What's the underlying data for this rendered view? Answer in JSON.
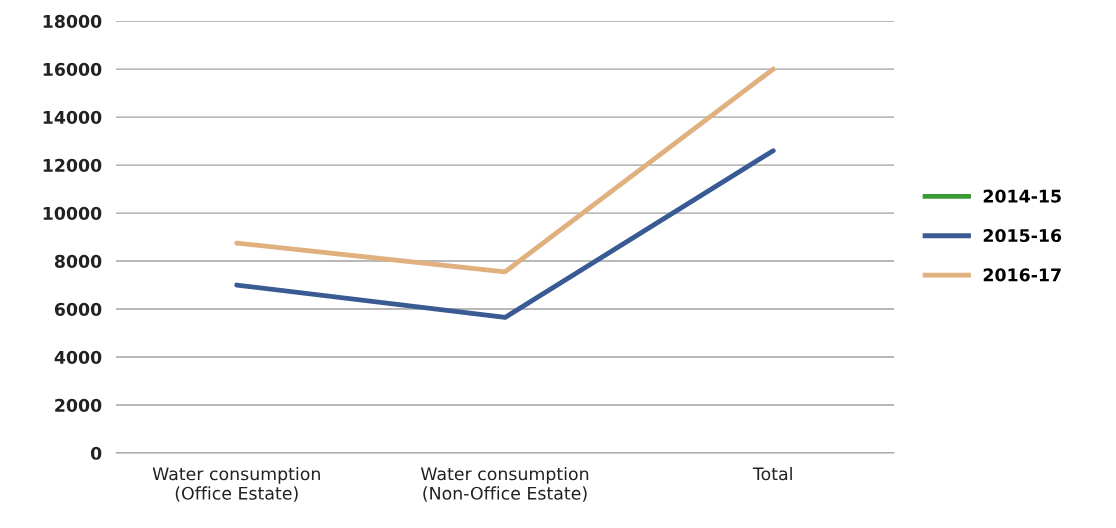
{
  "chart_data": {
    "type": "line",
    "categories": [
      "Water consumption\n(Office Estate)",
      "Water consumption\n(Non-Office Estate)",
      "Total"
    ],
    "series": [
      {
        "name": "2014-15",
        "color": "#3a9a35",
        "values": [
          null,
          null,
          null
        ]
      },
      {
        "name": "2015-16",
        "color": "#3a5a93",
        "values": [
          7000,
          5650,
          12600
        ]
      },
      {
        "name": "2016-17",
        "color": "#e0b07e",
        "values": [
          8750,
          7550,
          16000
        ]
      }
    ],
    "ylim": [
      0,
      18000
    ],
    "yticks": [
      0,
      2000,
      4000,
      6000,
      8000,
      10000,
      12000,
      14000,
      16000,
      18000
    ],
    "grid": "y",
    "legend": "right",
    "marker": "none",
    "line_style": "solid"
  }
}
